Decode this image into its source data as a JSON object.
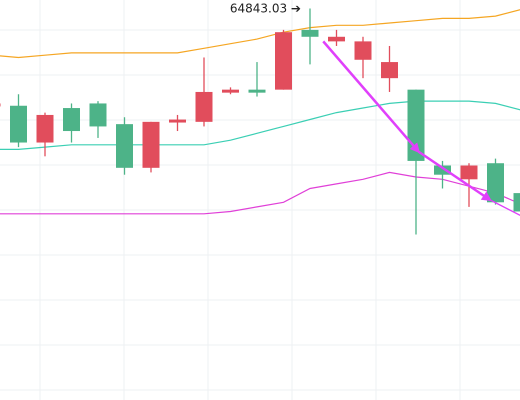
{
  "chart_data": {
    "type": "candlestick",
    "annotations": [
      {
        "text": "64843.03 ➔",
        "target": "high",
        "value": 64843.03
      }
    ],
    "ylim": [
      63140,
      64880
    ],
    "grid": true,
    "colors": {
      "up": "#4db388",
      "down": "#e14d5c",
      "upper_band": "#f5a623",
      "middle_band": "#3bcfb4",
      "lower_band": "#e040d8",
      "arrow": "#e040fb"
    },
    "candles": [
      {
        "o": 64430,
        "h": 64440,
        "l": 64410,
        "c": 64420
      },
      {
        "o": 64260,
        "h": 64470,
        "l": 64240,
        "c": 64420
      },
      {
        "o": 64380,
        "h": 64390,
        "l": 64200,
        "c": 64260
      },
      {
        "o": 64310,
        "h": 64430,
        "l": 64260,
        "c": 64410
      },
      {
        "o": 64330,
        "h": 64440,
        "l": 64280,
        "c": 64430
      },
      {
        "o": 64150,
        "h": 64370,
        "l": 64120,
        "c": 64340
      },
      {
        "o": 64350,
        "h": 64350,
        "l": 64130,
        "c": 64150
      },
      {
        "o": 64360,
        "h": 64380,
        "l": 64310,
        "c": 64350
      },
      {
        "o": 64480,
        "h": 64630,
        "l": 64330,
        "c": 64350
      },
      {
        "o": 64490,
        "h": 64500,
        "l": 64470,
        "c": 64480
      },
      {
        "o": 64480,
        "h": 64610,
        "l": 64460,
        "c": 64490
      },
      {
        "o": 64740,
        "h": 64750,
        "l": 64490,
        "c": 64490
      },
      {
        "o": 64720,
        "h": 64843.03,
        "l": 64600,
        "c": 64750
      },
      {
        "o": 64720,
        "h": 64750,
        "l": 64680,
        "c": 64700
      },
      {
        "o": 64700,
        "h": 64720,
        "l": 64540,
        "c": 64620
      },
      {
        "o": 64610,
        "h": 64680,
        "l": 64480,
        "c": 64540
      },
      {
        "o": 64180,
        "h": 64490,
        "l": 63860,
        "c": 64490
      },
      {
        "o": 64120,
        "h": 64180,
        "l": 64060,
        "c": 64160
      },
      {
        "o": 64160,
        "h": 64170,
        "l": 63980,
        "c": 64100
      },
      {
        "o": 64000,
        "h": 64190,
        "l": 63990,
        "c": 64170
      },
      {
        "o": 63960,
        "h": 64040,
        "l": 63910,
        "c": 64040
      }
    ],
    "bands": {
      "upper": [
        64640,
        64630,
        64640,
        64650,
        64650,
        64650,
        64650,
        64650,
        64670,
        64690,
        64710,
        64740,
        64760,
        64770,
        64770,
        64780,
        64790,
        64800,
        64800,
        64810,
        64840
      ],
      "middle": [
        64230,
        64230,
        64240,
        64250,
        64250,
        64250,
        64250,
        64250,
        64250,
        64270,
        64300,
        64330,
        64360,
        64390,
        64410,
        64430,
        64440,
        64440,
        64440,
        64430,
        64400
      ],
      "lower": [
        63950,
        63950,
        63950,
        63950,
        63950,
        63950,
        63950,
        63950,
        63950,
        63960,
        63980,
        64000,
        64060,
        64080,
        64100,
        64130,
        64110,
        64100,
        64070,
        64040,
        63990
      ]
    },
    "arrows": [
      {
        "from": [
          12.5,
          64700
        ],
        "to": [
          16.1,
          64220
        ]
      },
      {
        "from": [
          16.1,
          64220
        ],
        "to": [
          18.8,
          64010
        ]
      },
      {
        "from": [
          18.8,
          64010
        ],
        "to": [
          21,
          63880
        ]
      }
    ]
  }
}
